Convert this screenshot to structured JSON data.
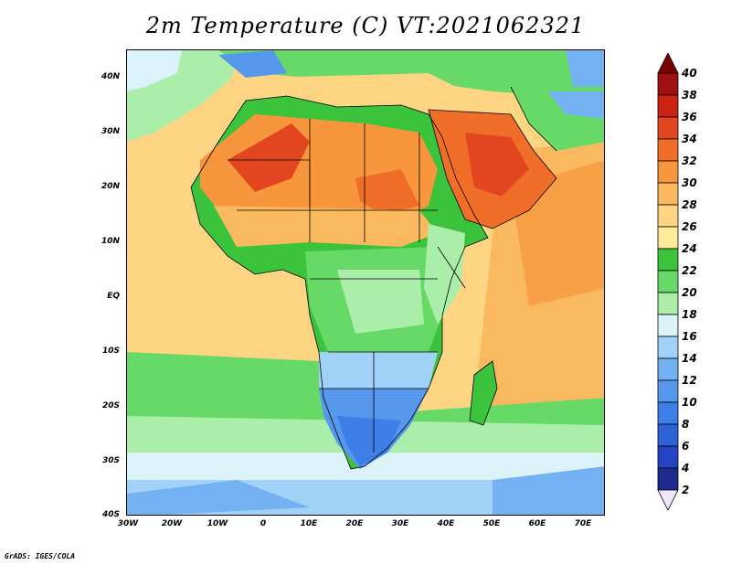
{
  "title": "2m Temperature (C) VT:2021062321",
  "credit": "GrADS: IGES/COLA",
  "map": {
    "region": "Africa and Arabian Peninsula",
    "projection": "lat-lon",
    "lon_range": [
      -30,
      75
    ],
    "lat_range": [
      -40,
      45
    ],
    "lat_ticks": [
      "40N",
      "30N",
      "20N",
      "10N",
      "EQ",
      "10S",
      "20S",
      "30S",
      "40S"
    ],
    "lon_ticks": [
      "30W",
      "20W",
      "10W",
      "0",
      "10E",
      "20E",
      "30E",
      "40E",
      "50E",
      "60E",
      "70E"
    ]
  },
  "colorbar": {
    "levels": [
      "2",
      "4",
      "6",
      "8",
      "10",
      "12",
      "14",
      "16",
      "18",
      "20",
      "22",
      "24",
      "26",
      "28",
      "30",
      "32",
      "34",
      "36",
      "38",
      "40"
    ],
    "colors": [
      "#f0e6ff",
      "#1e2a8c",
      "#2444c4",
      "#2e62d8",
      "#3d7fe6",
      "#5598ec",
      "#74b1f2",
      "#a0d2f8",
      "#dbf2f8",
      "#aaeeaa",
      "#66d966",
      "#3cc33c",
      "#ffeb99",
      "#fdd583",
      "#fbb95f",
      "#f7963c",
      "#f06e28",
      "#e24620",
      "#cc2414",
      "#a01010",
      "#7a0000"
    ]
  }
}
